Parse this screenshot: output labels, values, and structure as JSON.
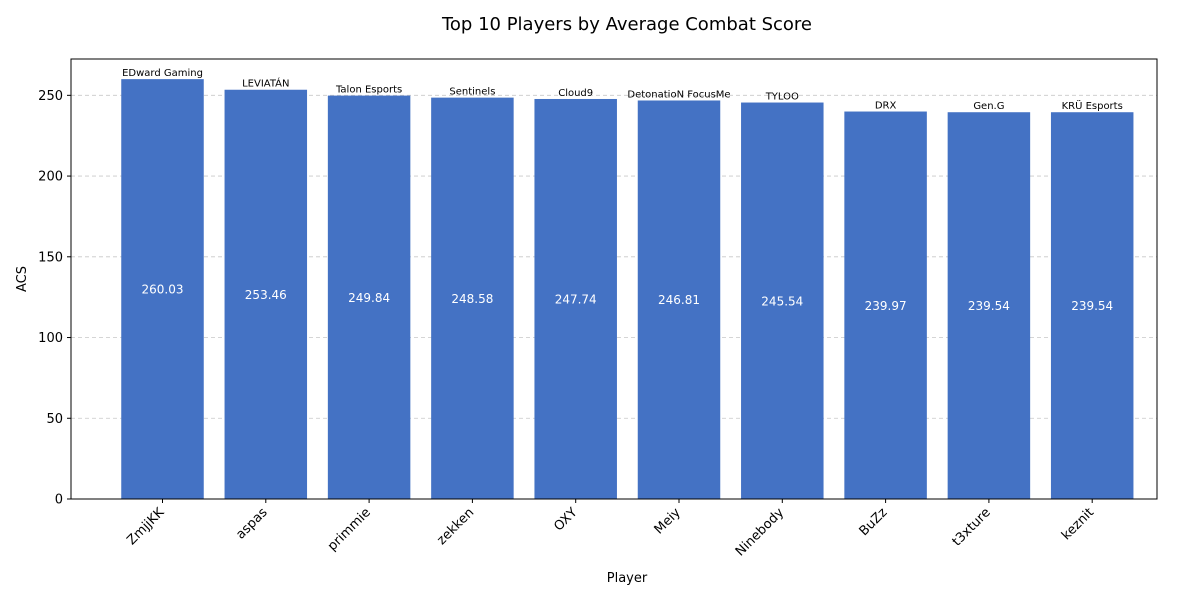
{
  "chart_data": {
    "type": "bar",
    "title": "Top 10 Players by Average Combat Score",
    "xlabel": "Player",
    "ylabel": "ACS",
    "ylim": [
      0,
      272.5
    ],
    "yticks": [
      0,
      50,
      100,
      150,
      200,
      250
    ],
    "grid": "y-dashed",
    "categories": [
      "ZmjjKK",
      "aspas",
      "primmie",
      "zekken",
      "OXY",
      "Meiy",
      "Ninebody",
      "BuZz",
      "t3xture",
      "keznit"
    ],
    "values": [
      260.03,
      253.46,
      249.84,
      248.58,
      247.74,
      246.81,
      245.54,
      239.97,
      239.54,
      239.54
    ],
    "value_labels": [
      "260.03",
      "253.46",
      "249.84",
      "248.58",
      "247.74",
      "246.81",
      "245.54",
      "239.97",
      "239.54",
      "239.54"
    ],
    "teams": [
      "EDward Gaming",
      "LEVIATÁN",
      "Talon Esports",
      "Sentinels",
      "Cloud9",
      "DetonatioN FocusMe",
      "TYLOO",
      "DRX",
      "Gen.G",
      "KRÜ Esports"
    ],
    "bar_color": "#4472c4"
  }
}
